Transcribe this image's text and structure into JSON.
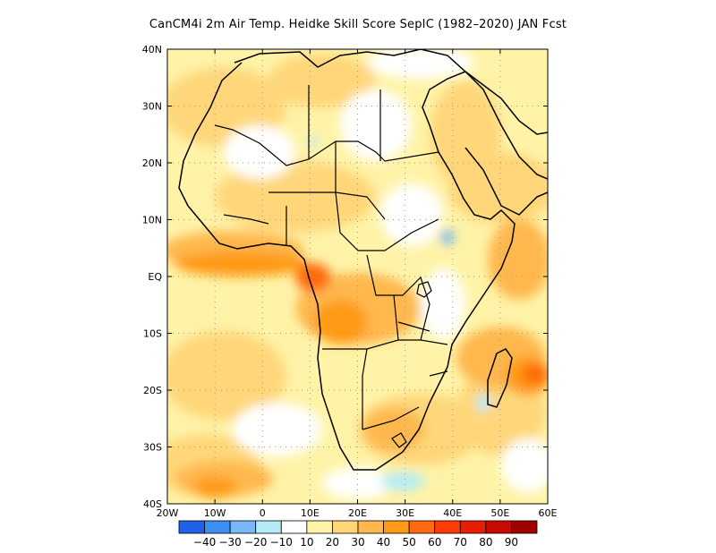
{
  "title": "CanCM4i  2m Air Temp. Heidke Skill Score SepIC (1982–2020) JAN Fcst",
  "lat_labels": [
    "40N",
    "30N",
    "20N",
    "10N",
    "EQ",
    "10S",
    "20S",
    "30S",
    "40S"
  ],
  "lon_labels": [
    "20W",
    "10W",
    "0",
    "10E",
    "20E",
    "30E",
    "40E",
    "50E",
    "60E"
  ],
  "colorbar": {
    "colors": [
      "#2160e8",
      "#3c8ef0",
      "#79b8f4",
      "#b4ecf6",
      "#ffffff",
      "#fff3a8",
      "#ffd77a",
      "#ffb84e",
      "#ff9a18",
      "#ff6a10",
      "#ff3c08",
      "#e81e04",
      "#c80a02",
      "#a00000"
    ],
    "labels": [
      "−40",
      "−30",
      "−20",
      "−10",
      "10",
      "20",
      "30",
      "40",
      "50",
      "60",
      "70",
      "80",
      "90"
    ]
  },
  "field_colors": {
    "white": "#ffffff",
    "light_yellow": "#fff3a8",
    "yellow": "#ffd77a",
    "light_orange": "#ffb84e",
    "orange": "#ff9a18",
    "dark_orange": "#ff6a10",
    "light_blue": "#b4ecf6",
    "blue": "#79b8f4"
  }
}
